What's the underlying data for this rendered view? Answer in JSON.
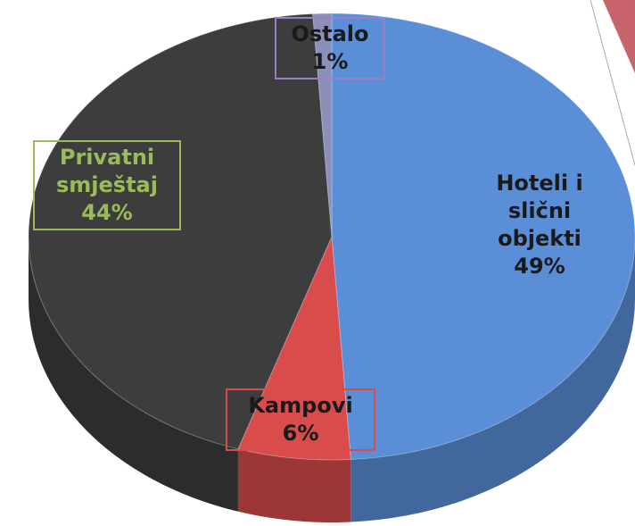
{
  "chart_data": {
    "type": "pie",
    "categories": [
      "Hoteli i slični objekti",
      "Kampovi",
      "Privatni smještaj",
      "Ostalo"
    ],
    "values": [
      49,
      6,
      44,
      1
    ],
    "value_labels": [
      "49%",
      "6%",
      "44%",
      "1%"
    ],
    "colors": [
      "#5a8fd8",
      "#d84c4c",
      "#3d3d3d",
      "#8c8fb8"
    ]
  }
}
